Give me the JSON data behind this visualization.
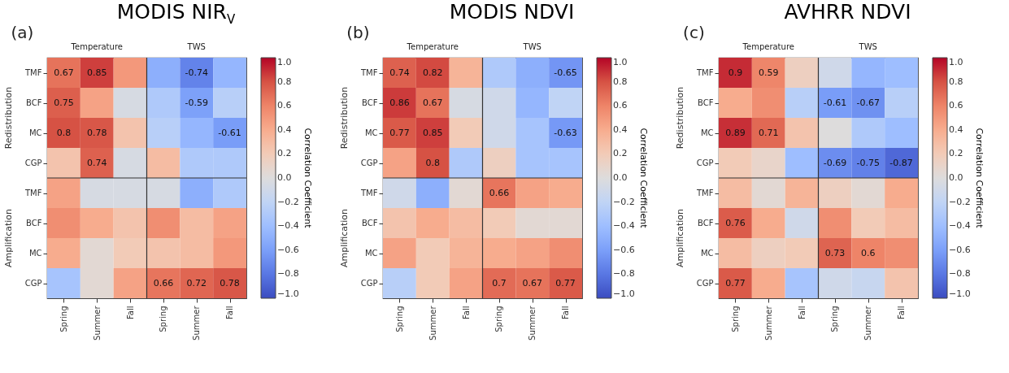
{
  "chart_data": [
    {
      "type": "heatmap",
      "title": "MODIS NIR$_{V}$",
      "annotations": [
        "(a)",
        "Temperature",
        "TWS",
        "Redistribution",
        "Amplification"
      ],
      "categories": [
        "Spring",
        "Summer",
        "Fall",
        "Spring",
        "Summer",
        "Fall"
      ],
      "y_categories": [
        "TMF",
        "BCF",
        "MC",
        "CGP",
        "TMF",
        "BCF",
        "MC",
        "CGP"
      ],
      "cells": [
        [
          0.67,
          0.85,
          0.5,
          -0.5,
          -0.74,
          -0.45
        ],
        [
          0.75,
          0.45,
          -0.05,
          -0.3,
          -0.59,
          -0.25
        ],
        [
          0.8,
          0.78,
          0.25,
          -0.25,
          -0.45,
          -0.61
        ],
        [
          0.25,
          0.74,
          -0.05,
          0.3,
          -0.3,
          -0.3
        ],
        [
          0.45,
          -0.05,
          -0.05,
          -0.05,
          -0.5,
          -0.3
        ],
        [
          0.55,
          0.4,
          0.25,
          0.55,
          0.3,
          0.45
        ],
        [
          0.4,
          0.05,
          0.2,
          0.25,
          0.3,
          0.5
        ],
        [
          -0.35,
          0.05,
          0.45,
          0.66,
          0.72,
          0.78
        ]
      ],
      "cell_labels": [
        [
          "0.67",
          "0.85",
          null,
          null,
          "-0.74",
          null
        ],
        [
          "0.75",
          null,
          null,
          null,
          "-0.59",
          null
        ],
        [
          "0.8",
          "0.78",
          null,
          null,
          null,
          "-0.61"
        ],
        [
          null,
          "0.74",
          null,
          null,
          null,
          null
        ],
        [
          null,
          null,
          null,
          null,
          null,
          null
        ],
        [
          null,
          null,
          null,
          null,
          null,
          null
        ],
        [
          null,
          null,
          null,
          null,
          null,
          null
        ],
        [
          null,
          null,
          null,
          "0.66",
          "0.72",
          "0.78"
        ]
      ],
      "clim": [
        -1,
        1
      ],
      "clabel": "Correlation Coefficient",
      "cticks": [
        {
          "value": -1,
          "label": "−1.0"
        },
        {
          "value": -0.8,
          "label": "−0.8"
        },
        {
          "value": -0.6,
          "label": "−0.6"
        },
        {
          "value": -0.4,
          "label": "−0.4"
        },
        {
          "value": -0.2,
          "label": "−0.2"
        },
        {
          "value": 0,
          "label": "0.0"
        },
        0.2,
        0.4,
        0.6,
        0.8,
        {
          "value": 1,
          "label": "1.0"
        }
      ]
    },
    {
      "type": "heatmap",
      "title": "MODIS NDVI",
      "annotations": [
        "(b)",
        "Temperature",
        "TWS",
        "Redistribution",
        "Amplification"
      ],
      "categories": [
        "Spring",
        "Summer",
        "Fall",
        "Spring",
        "Summer",
        "Fall"
      ],
      "y_categories": [
        "TMF",
        "BCF",
        "MC",
        "CGP",
        "TMF",
        "BCF",
        "MC",
        "CGP"
      ],
      "cells": [
        [
          0.74,
          0.82,
          0.35,
          -0.3,
          -0.5,
          -0.65
        ],
        [
          0.86,
          0.67,
          -0.05,
          -0.1,
          -0.45,
          -0.2
        ],
        [
          0.77,
          0.85,
          0.2,
          -0.1,
          -0.35,
          -0.63
        ],
        [
          0.45,
          0.8,
          -0.3,
          0.15,
          -0.35,
          -0.35
        ],
        [
          -0.1,
          -0.5,
          0.05,
          0.66,
          0.45,
          0.4
        ],
        [
          0.25,
          0.4,
          0.3,
          0.2,
          0.05,
          0.05
        ],
        [
          0.45,
          0.2,
          0.35,
          0.4,
          0.45,
          0.55
        ],
        [
          -0.25,
          0.2,
          0.45,
          0.7,
          0.67,
          0.77
        ]
      ],
      "cell_labels": [
        [
          "0.74",
          "0.82",
          null,
          null,
          null,
          "-0.65"
        ],
        [
          "0.86",
          "0.67",
          null,
          null,
          null,
          null
        ],
        [
          "0.77",
          "0.85",
          null,
          null,
          null,
          "-0.63"
        ],
        [
          null,
          "0.8",
          null,
          null,
          null,
          null
        ],
        [
          null,
          null,
          null,
          "0.66",
          null,
          null
        ],
        [
          null,
          null,
          null,
          null,
          null,
          null
        ],
        [
          null,
          null,
          null,
          null,
          null,
          null
        ],
        [
          null,
          null,
          null,
          "0.7",
          "0.67",
          "0.77"
        ]
      ],
      "clim": [
        -1,
        1
      ],
      "clabel": "Correlation Coefficient",
      "cticks": [
        {
          "value": -1,
          "label": "−1.0"
        },
        {
          "value": -0.8,
          "label": "−0.8"
        },
        {
          "value": -0.6,
          "label": "−0.6"
        },
        {
          "value": -0.4,
          "label": "−0.4"
        },
        {
          "value": -0.2,
          "label": "−0.2"
        },
        {
          "value": 0,
          "label": "0.0"
        },
        0.2,
        0.4,
        0.6,
        0.8,
        {
          "value": 1,
          "label": "1.0"
        }
      ]
    },
    {
      "type": "heatmap",
      "title": "AVHRR NDVI",
      "annotations": [
        "(c)",
        "Temperature",
        "TWS",
        "Redistribution",
        "Amplification"
      ],
      "categories": [
        "Spring",
        "Summer",
        "Fall",
        "Spring",
        "Summer",
        "Fall"
      ],
      "y_categories": [
        "TMF",
        "BCF",
        "MC",
        "CGP",
        "TMF",
        "BCF",
        "MC",
        "CGP"
      ],
      "cells": [
        [
          0.9,
          0.59,
          0.15,
          -0.1,
          -0.45,
          -0.4
        ],
        [
          0.4,
          0.55,
          -0.25,
          -0.61,
          -0.67,
          -0.25
        ],
        [
          0.89,
          0.71,
          0.25,
          0.0,
          -0.3,
          -0.4
        ],
        [
          0.2,
          0.1,
          -0.4,
          -0.69,
          -0.75,
          -0.87
        ],
        [
          0.3,
          0.05,
          0.35,
          0.15,
          0.05,
          0.4
        ],
        [
          0.76,
          0.4,
          -0.1,
          0.55,
          0.2,
          0.3
        ],
        [
          0.3,
          0.15,
          0.2,
          0.73,
          0.6,
          0.55
        ],
        [
          0.77,
          0.4,
          -0.35,
          -0.1,
          -0.15,
          0.25
        ]
      ],
      "cell_labels": [
        [
          "0.9",
          "0.59",
          null,
          null,
          null,
          null
        ],
        [
          null,
          null,
          null,
          "-0.61",
          "-0.67",
          null
        ],
        [
          "0.89",
          "0.71",
          null,
          null,
          null,
          null
        ],
        [
          null,
          null,
          null,
          "-0.69",
          "-0.75",
          "-0.87"
        ],
        [
          null,
          null,
          null,
          null,
          null,
          null
        ],
        [
          "0.76",
          null,
          null,
          null,
          null,
          null
        ],
        [
          null,
          null,
          null,
          "0.73",
          "0.6",
          null
        ],
        [
          "0.77",
          null,
          null,
          null,
          null,
          null
        ]
      ],
      "clim": [
        -1,
        1
      ],
      "clabel": "Correlation Coefficient",
      "cticks": [
        {
          "value": -1,
          "label": "−1.0"
        },
        {
          "value": -0.8,
          "label": "−0.8"
        },
        {
          "value": -0.6,
          "label": "−0.6"
        },
        {
          "value": -0.4,
          "label": "−0.4"
        },
        {
          "value": -0.2,
          "label": "−0.2"
        },
        {
          "value": 0,
          "label": "0.0"
        },
        0.2,
        0.4,
        0.6,
        0.8,
        {
          "value": 1,
          "label": "1.0"
        }
      ]
    }
  ]
}
